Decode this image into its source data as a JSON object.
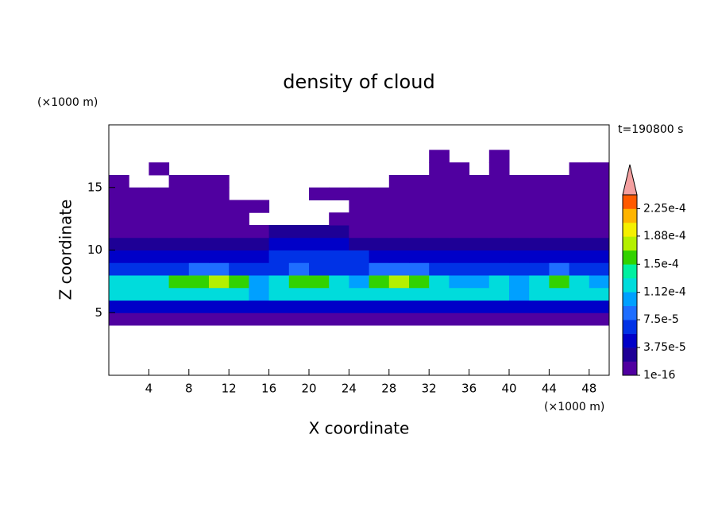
{
  "chart_data": {
    "type": "contour",
    "title": "density of cloud",
    "x_label": "X coordinate",
    "y_label": "Z coordinate",
    "x_unit": "(×1000 m)",
    "y_unit": "(×1000 m)",
    "annotation": "t=190800 s",
    "xlim": [
      0,
      50
    ],
    "ylim": [
      0,
      20
    ],
    "xticks": [
      4,
      8,
      12,
      16,
      20,
      24,
      28,
      32,
      36,
      40,
      44,
      48
    ],
    "yticks": [
      5,
      10,
      15
    ],
    "x_edges": [
      0,
      2,
      4,
      6,
      8,
      10,
      12,
      14,
      16,
      18,
      20,
      22,
      24,
      26,
      28,
      30,
      32,
      34,
      36,
      38,
      40,
      42,
      44,
      46,
      48,
      50
    ],
    "y_edges": [
      4,
      5,
      6,
      7,
      8,
      9,
      10,
      11,
      12,
      13,
      14,
      15,
      16,
      17,
      18
    ],
    "clim": [
      1e-16,
      0.00024375
    ],
    "cticks": [
      {
        "value": 1e-16,
        "label": "1e-16"
      },
      {
        "value": 3.75e-05,
        "label": "3.75e-5"
      },
      {
        "value": 7.5e-05,
        "label": "7.5e-5"
      },
      {
        "value": 0.000112,
        "label": "1.12e-4"
      },
      {
        "value": 0.00015,
        "label": "1.5e-4"
      },
      {
        "value": 0.000188,
        "label": "1.88e-4"
      },
      {
        "value": 0.000225,
        "label": "2.25e-4"
      }
    ],
    "colors": [
      "#5000a0",
      "#1e0096",
      "#0000c8",
      "#0032e6",
      "#1e6eff",
      "#00a0ff",
      "#00dcdc",
      "#00f0a0",
      "#32d200",
      "#b4f000",
      "#f5f000",
      "#ffb400",
      "#ff5a00"
    ],
    "over_color": "#f4a0a0",
    "z": [
      [
        1e-06,
        1e-06,
        1e-06,
        1e-06,
        1e-06,
        1e-06,
        1e-06,
        1e-06,
        1e-06,
        1e-06,
        1e-06,
        1e-06,
        1e-06,
        1e-06,
        1e-06,
        1e-06,
        1e-06,
        1e-06,
        1e-06,
        1e-06,
        1e-06,
        1e-06,
        1e-06,
        1e-06,
        1e-06
      ],
      [
        4.5e-05,
        4.5e-05,
        4.5e-05,
        4.5e-05,
        4.5e-05,
        4.5e-05,
        4.5e-05,
        4.5e-05,
        4.5e-05,
        4.5e-05,
        4.5e-05,
        4.5e-05,
        4.5e-05,
        4.5e-05,
        4.5e-05,
        4.5e-05,
        4.5e-05,
        4.5e-05,
        4.5e-05,
        4.5e-05,
        4.5e-05,
        4.5e-05,
        4.5e-05,
        4.5e-05,
        4.5e-05
      ],
      [
        0.00012,
        0.00012,
        0.00012,
        0.00012,
        0.00012,
        0.00012,
        0.00012,
        0.0001,
        0.00012,
        0.00012,
        0.00012,
        0.00012,
        0.00012,
        0.00012,
        0.00012,
        0.00012,
        0.00012,
        0.00012,
        0.00012,
        0.00012,
        0.0001,
        0.00012,
        0.00012,
        0.00012,
        0.00012
      ],
      [
        0.00012,
        0.00012,
        0.00012,
        0.00016,
        0.00016,
        0.00018,
        0.00016,
        0.0001,
        0.00012,
        0.00016,
        0.00016,
        0.00012,
        0.0001,
        0.00016,
        0.00018,
        0.00016,
        0.00012,
        0.0001,
        0.0001,
        0.00012,
        0.0001,
        0.00012,
        0.00016,
        0.00012,
        0.0001
      ],
      [
        6e-05,
        6e-05,
        6e-05,
        6e-05,
        8e-05,
        8e-05,
        6e-05,
        6e-05,
        6e-05,
        8e-05,
        6e-05,
        6e-05,
        6e-05,
        8e-05,
        8e-05,
        8e-05,
        6e-05,
        6e-05,
        6e-05,
        6e-05,
        6e-05,
        6e-05,
        8e-05,
        6e-05,
        6e-05
      ],
      [
        4.5e-05,
        4.5e-05,
        4.5e-05,
        4.5e-05,
        4.5e-05,
        4.5e-05,
        4.5e-05,
        4.5e-05,
        6e-05,
        6e-05,
        6e-05,
        6e-05,
        6e-05,
        4.5e-05,
        4.5e-05,
        4.5e-05,
        4.5e-05,
        4.5e-05,
        4.5e-05,
        4.5e-05,
        4.5e-05,
        4.5e-05,
        4.5e-05,
        4.5e-05,
        4.5e-05
      ],
      [
        2.5e-05,
        2.5e-05,
        2.5e-05,
        2.5e-05,
        2.5e-05,
        2.5e-05,
        2.5e-05,
        2.5e-05,
        4.5e-05,
        4.5e-05,
        4.5e-05,
        4.5e-05,
        2.5e-05,
        2.5e-05,
        2.5e-05,
        2.5e-05,
        2.5e-05,
        2.5e-05,
        2.5e-05,
        2.5e-05,
        2.5e-05,
        2.5e-05,
        2.5e-05,
        2.5e-05,
        2.5e-05
      ],
      [
        1e-06,
        1e-06,
        1e-06,
        1e-06,
        1e-06,
        1e-06,
        1e-06,
        1e-06,
        2.5e-05,
        2.5e-05,
        2.5e-05,
        2.5e-05,
        1e-06,
        1e-06,
        1e-06,
        1e-06,
        1e-06,
        1e-06,
        1e-06,
        1e-06,
        1e-06,
        1e-06,
        1e-06,
        1e-06,
        1e-06
      ],
      [
        1e-06,
        1e-06,
        1e-06,
        1e-06,
        1e-06,
        1e-06,
        1e-06,
        null,
        null,
        null,
        null,
        1e-06,
        1e-06,
        1e-06,
        1e-06,
        1e-06,
        1e-06,
        1e-06,
        1e-06,
        1e-06,
        1e-06,
        1e-06,
        1e-06,
        1e-06,
        1e-06
      ],
      [
        1e-06,
        1e-06,
        1e-06,
        1e-06,
        1e-06,
        1e-06,
        1e-06,
        1e-06,
        null,
        null,
        null,
        null,
        1e-06,
        1e-06,
        1e-06,
        1e-06,
        1e-06,
        1e-06,
        1e-06,
        1e-06,
        1e-06,
        1e-06,
        1e-06,
        1e-06,
        1e-06
      ],
      [
        1e-06,
        1e-06,
        1e-06,
        1e-06,
        1e-06,
        1e-06,
        null,
        null,
        null,
        null,
        1e-06,
        1e-06,
        1e-06,
        1e-06,
        1e-06,
        1e-06,
        1e-06,
        1e-06,
        1e-06,
        1e-06,
        1e-06,
        1e-06,
        1e-06,
        1e-06,
        1e-06
      ],
      [
        1e-06,
        null,
        null,
        1e-06,
        1e-06,
        1e-06,
        null,
        null,
        null,
        null,
        null,
        null,
        null,
        null,
        1e-06,
        1e-06,
        1e-06,
        1e-06,
        1e-06,
        1e-06,
        1e-06,
        1e-06,
        1e-06,
        1e-06,
        1e-06
      ],
      [
        null,
        null,
        1e-06,
        null,
        null,
        null,
        null,
        null,
        null,
        null,
        null,
        null,
        null,
        null,
        null,
        null,
        1e-06,
        1e-06,
        null,
        1e-06,
        null,
        null,
        null,
        1e-06,
        1e-06
      ],
      [
        null,
        null,
        null,
        null,
        null,
        null,
        null,
        null,
        null,
        null,
        null,
        null,
        null,
        null,
        null,
        null,
        1e-06,
        null,
        null,
        1e-06,
        null,
        null,
        null,
        null,
        null
      ]
    ]
  }
}
